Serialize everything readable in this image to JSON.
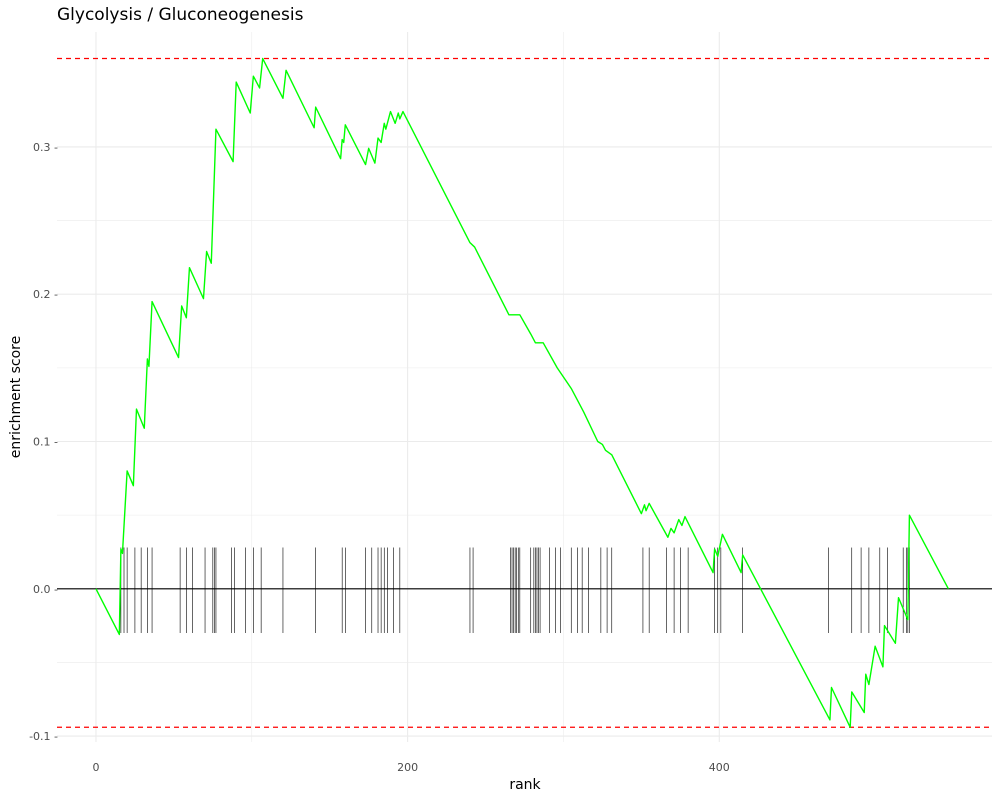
{
  "colors": {
    "curve": "#00ff00",
    "threshold": "#ff0000",
    "baseline": "#000000",
    "rug": "#000000",
    "grid": "#ebebeb"
  },
  "chart_data": {
    "type": "line",
    "title": "Glycolysis / Gluconeogenesis",
    "xlabel": "rank",
    "ylabel": "enrichment score",
    "xlim": [
      -25,
      575
    ],
    "ylim": [
      -0.104,
      0.378
    ],
    "x_ticks": [
      0,
      200,
      400
    ],
    "x_tick_labels": [
      "0",
      "200",
      "400"
    ],
    "y_ticks": [
      -0.1,
      0.0,
      0.1,
      0.2,
      0.3
    ],
    "y_tick_labels": [
      "-0.1 -",
      "0.0 -",
      "0.1 -",
      "0.2 -",
      "0.3 -"
    ],
    "grid": true,
    "baseline_y": 0.0,
    "thresholds": [
      0.36,
      -0.094
    ],
    "rug_range": [
      -0.03,
      0.028
    ],
    "series": [
      {
        "points": [
          [
            0,
            0.0
          ],
          [
            15,
            -0.031
          ],
          [
            16,
            0.027
          ],
          [
            17,
            0.024
          ],
          [
            20,
            0.08
          ],
          [
            24,
            0.07
          ],
          [
            26,
            0.122
          ],
          [
            31,
            0.109
          ],
          [
            33,
            0.156
          ],
          [
            34,
            0.151
          ],
          [
            36,
            0.195
          ],
          [
            53,
            0.157
          ],
          [
            55,
            0.192
          ],
          [
            58,
            0.184
          ],
          [
            60,
            0.218
          ],
          [
            69,
            0.197
          ],
          [
            71,
            0.229
          ],
          [
            74,
            0.221
          ],
          [
            77,
            0.312
          ],
          [
            88,
            0.29
          ],
          [
            90,
            0.344
          ],
          [
            99,
            0.323
          ],
          [
            101,
            0.348
          ],
          [
            105,
            0.34
          ],
          [
            107,
            0.36
          ],
          [
            120,
            0.333
          ],
          [
            122,
            0.352
          ],
          [
            140,
            0.313
          ],
          [
            141,
            0.327
          ],
          [
            157,
            0.292
          ],
          [
            158,
            0.305
          ],
          [
            159,
            0.303
          ],
          [
            160,
            0.315
          ],
          [
            173,
            0.288
          ],
          [
            175,
            0.299
          ],
          [
            179,
            0.289
          ],
          [
            181,
            0.306
          ],
          [
            183,
            0.303
          ],
          [
            185,
            0.316
          ],
          [
            186,
            0.312
          ],
          [
            189,
            0.324
          ],
          [
            192,
            0.316
          ],
          [
            194,
            0.323
          ],
          [
            195,
            0.319
          ],
          [
            197,
            0.324
          ],
          [
            240,
            0.235
          ],
          [
            243,
            0.232
          ],
          [
            265,
            0.186
          ],
          [
            272,
            0.186
          ],
          [
            279,
            0.173
          ],
          [
            282,
            0.167
          ],
          [
            287,
            0.167
          ],
          [
            296,
            0.15
          ],
          [
            305,
            0.136
          ],
          [
            313,
            0.12
          ],
          [
            322,
            0.1
          ],
          [
            325,
            0.098
          ],
          [
            327,
            0.094
          ],
          [
            331,
            0.091
          ],
          [
            350,
            0.051
          ],
          [
            352,
            0.057
          ],
          [
            353,
            0.053
          ],
          [
            355,
            0.058
          ],
          [
            367,
            0.035
          ],
          [
            369,
            0.041
          ],
          [
            371,
            0.038
          ],
          [
            374,
            0.047
          ],
          [
            376,
            0.043
          ],
          [
            378,
            0.049
          ],
          [
            396,
            0.011
          ],
          [
            397,
            0.027
          ],
          [
            399,
            0.022
          ],
          [
            402,
            0.037
          ],
          [
            414,
            0.011
          ],
          [
            415,
            0.023
          ],
          [
            471,
            -0.089
          ],
          [
            472,
            -0.067
          ],
          [
            484,
            -0.094
          ],
          [
            485,
            -0.07
          ],
          [
            493,
            -0.084
          ],
          [
            494,
            -0.058
          ],
          [
            496,
            -0.065
          ],
          [
            500,
            -0.039
          ],
          [
            505,
            -0.053
          ],
          [
            506,
            -0.025
          ],
          [
            513,
            -0.037
          ],
          [
            515,
            -0.006
          ],
          [
            521,
            -0.021
          ],
          [
            522,
            0.05
          ],
          [
            547,
            0.0
          ]
        ]
      }
    ],
    "rug_positions": [
      16,
      18,
      20,
      25,
      29,
      33,
      36,
      54,
      58,
      62,
      70,
      75,
      76,
      77,
      87,
      89,
      96,
      101,
      106,
      120,
      141,
      158,
      160,
      173,
      177,
      181,
      183,
      185,
      187,
      191,
      195,
      240,
      242,
      266,
      267,
      268,
      269,
      270,
      271,
      272,
      279,
      281,
      282,
      283,
      284,
      285,
      291,
      295,
      298,
      305,
      309,
      312,
      316,
      324,
      328,
      331,
      351,
      355,
      366,
      371,
      375,
      380,
      397,
      399,
      401,
      415,
      470,
      485,
      491,
      496,
      503,
      508,
      518,
      520,
      521,
      522
    ]
  }
}
